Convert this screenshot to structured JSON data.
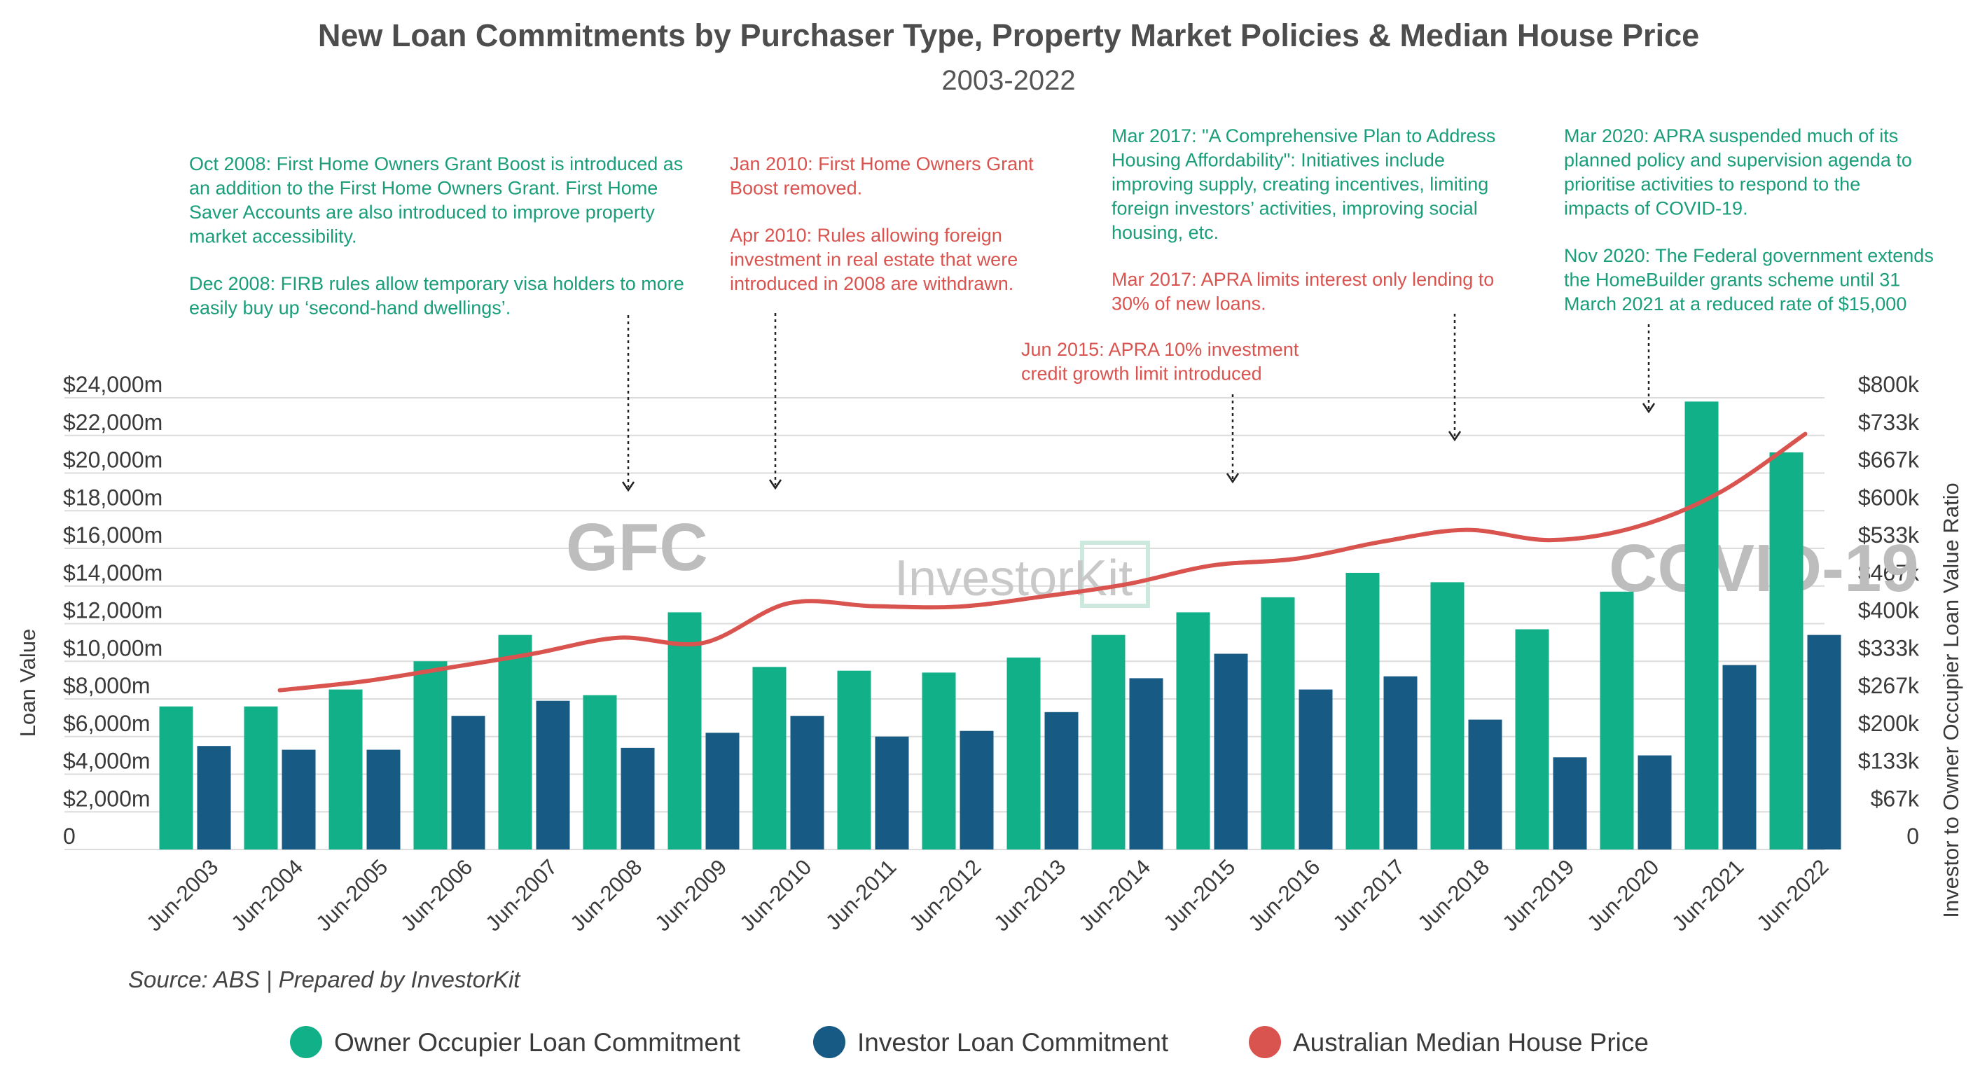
{
  "chart_data": {
    "type": "bar",
    "title": "New Loan Commitments by Purchaser Type, Property Market Policies & Median House Price",
    "subtitle": "2003-2022",
    "categories": [
      "Jun-2003",
      "Jun-2004",
      "Jun-2005",
      "Jun-2006",
      "Jun-2007",
      "Jun-2008",
      "Jun-2009",
      "Jun-2010",
      "Jun-2011",
      "Jun-2012",
      "Jun-2013",
      "Jun-2014",
      "Jun-2015",
      "Jun-2016",
      "Jun-2017",
      "Jun-2018",
      "Jun-2019",
      "Jun-2020",
      "Jun-2021",
      "Jun-2022"
    ],
    "series": [
      {
        "name": "Owner Occupier Loan Commitment",
        "color": "#12b088",
        "kind": "bar",
        "values": [
          7600,
          7600,
          8500,
          10000,
          11400,
          8200,
          12600,
          9700,
          9500,
          9400,
          10200,
          11400,
          12600,
          13400,
          14700,
          14200,
          11700,
          13700,
          23800,
          21100
        ]
      },
      {
        "name": "Investor Loan Commitment",
        "color": "#175a84",
        "kind": "bar",
        "values": [
          5500,
          5300,
          5300,
          7100,
          7900,
          5400,
          6200,
          7100,
          6000,
          6300,
          7300,
          9100,
          10400,
          8500,
          9200,
          6900,
          4900,
          5000,
          9800,
          11400
        ]
      },
      {
        "name": "Australian Median House Price",
        "color": "#d9534f",
        "kind": "line",
        "axis": "right",
        "values": [
          null,
          282000,
          298000,
          322000,
          347000,
          375000,
          366000,
          436000,
          431000,
          430000,
          448000,
          470000,
          503000,
          515000,
          545000,
          566000,
          548000,
          571000,
          633000,
          736000
        ]
      }
    ],
    "ylabel": "Loan Value",
    "y2label": "Investor to Owner Occupier Loan Value Ratio",
    "ylim": [
      0,
      24000
    ],
    "y2lim": [
      0,
      800000
    ],
    "yticks": [
      "0",
      "$2,000m",
      "$4,000m",
      "$6,000m",
      "$8,000m",
      "$10,000m",
      "$12,000m",
      "$14,000m",
      "$16,000m",
      "$18,000m",
      "$20,000m",
      "$22,000m",
      "$24,000m"
    ],
    "y2ticks": [
      "0",
      "$67k",
      "$133k",
      "$200k",
      "$267k",
      "$333k",
      "$400k",
      "$467k",
      "$533k",
      "$600k",
      "$667k",
      "$733k",
      "$800k"
    ],
    "source": "Source: ABS | Prepared by InvestorKit",
    "overlays": [
      "GFC",
      "COVID-19"
    ],
    "watermark": "InvestorKit",
    "legend_position": "bottom",
    "annotations": [
      {
        "id": "a1",
        "color": "#1a9e7a",
        "target": "Jun-2008",
        "lines": [
          "Oct 2008: First Home Owners Grant Boost is introduced as",
          "an addition to the First Home Owners Grant. First Home",
          "Saver Accounts are also introduced to improve property",
          "market accessibility.",
          "",
          "Dec 2008: FIRB rules allow temporary visa holders to more",
          "easily buy up ‘second-hand dwellings’."
        ]
      },
      {
        "id": "a2",
        "color": "#d9534f",
        "target": "Jun-2010",
        "lines": [
          "Jan 2010: First Home Owners Grant",
          "Boost removed.",
          "",
          "Apr 2010: Rules allowing foreign",
          "investment in real estate that were",
          "introduced in 2008 are withdrawn."
        ]
      },
      {
        "id": "a3",
        "color": "#d9534f",
        "target": "Jun-2015",
        "lines": [
          "Jun 2015: APRA 10% investment",
          "credit growth limit introduced"
        ]
      },
      {
        "id": "a4",
        "color": "#1a9e7a",
        "target": "Jun-2018",
        "lines": [
          "Mar 2017: \"A Comprehensive Plan to Address",
          "Housing Affordability\": Initiatives include",
          "improving supply, creating incentives, limiting",
          "foreign investors’ activities, improving social",
          "housing, etc."
        ]
      },
      {
        "id": "a5",
        "color": "#d9534f",
        "target": "Jun-2018",
        "lines": [
          "Mar 2017: APRA limits interest only lending to",
          "30% of new loans."
        ]
      },
      {
        "id": "a6",
        "color": "#1a9e7a",
        "target": "Jun-2020",
        "lines": [
          "Mar 2020: APRA suspended much of its",
          "planned policy and supervision agenda to",
          "prioritise activities to respond to the",
          "impacts of COVID-19.",
          "",
          "Nov 2020: The Federal government extends",
          "the HomeBuilder grants scheme until 31",
          "March 2021 at a reduced rate of $15,000"
        ]
      }
    ]
  }
}
